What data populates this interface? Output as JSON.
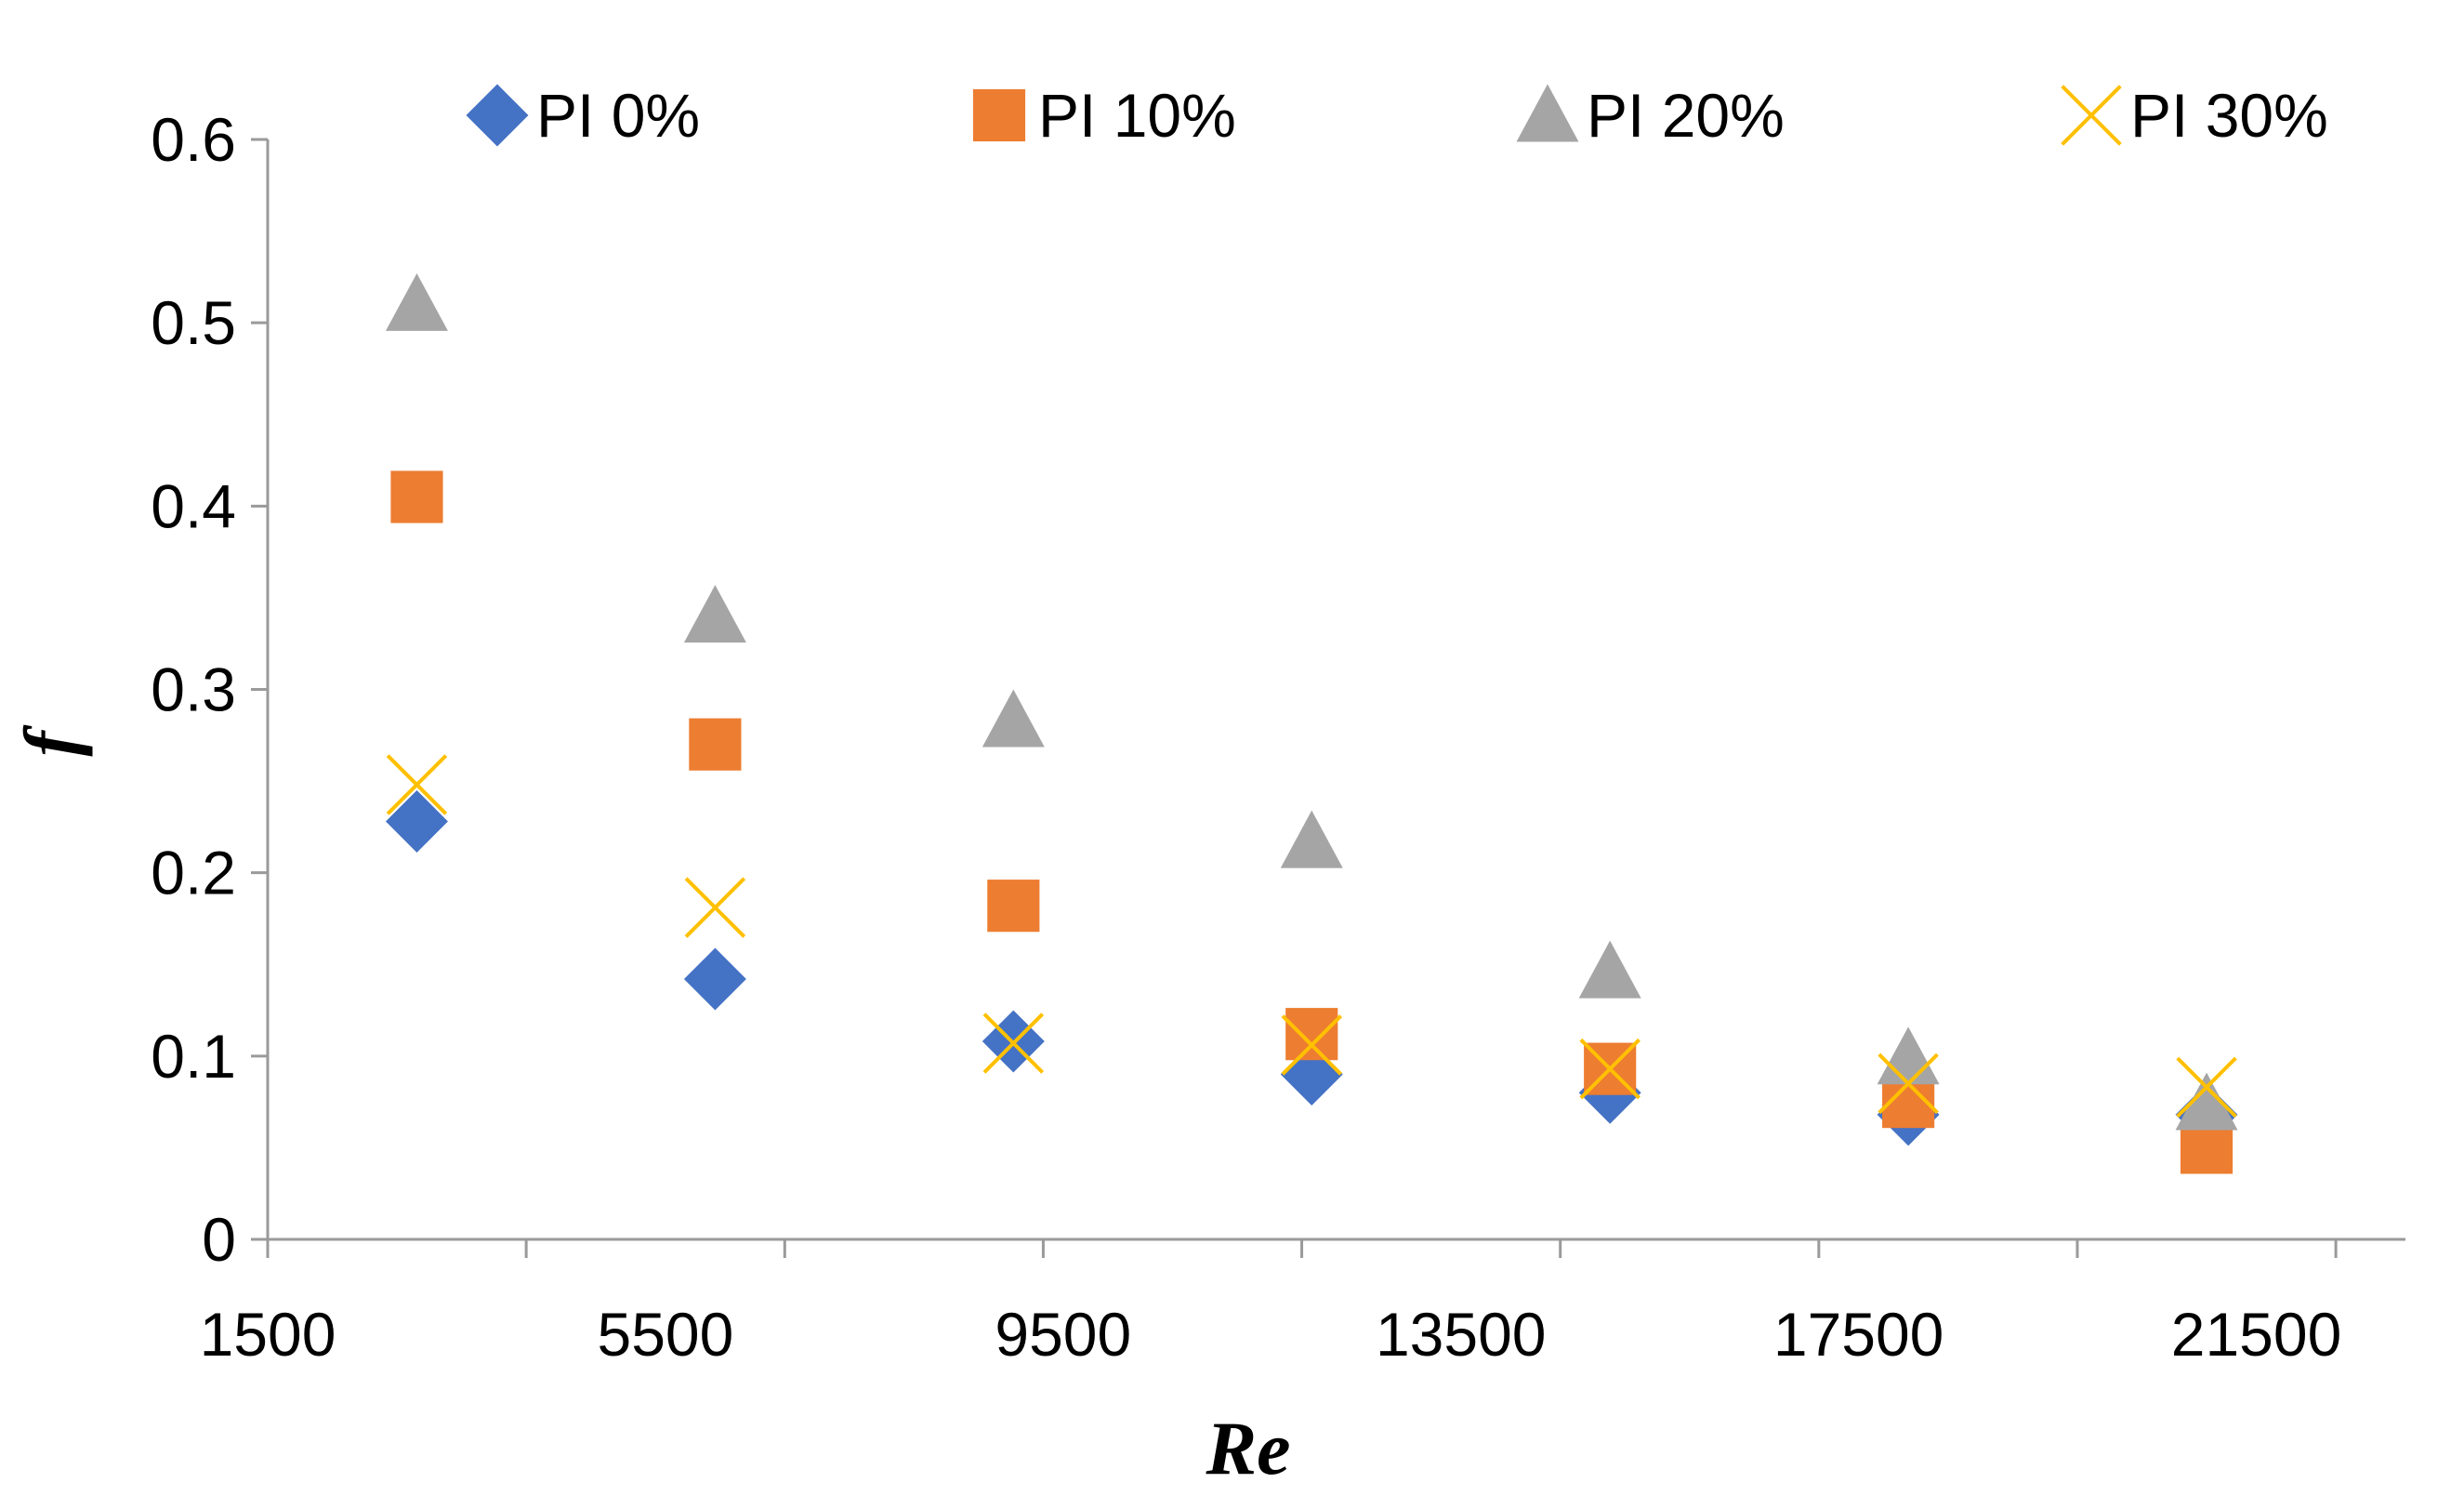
{
  "chart_data": {
    "type": "scatter",
    "title": "",
    "xlabel": "Re",
    "ylabel": "f",
    "xlim": [
      1500,
      23000
    ],
    "ylim": [
      0,
      0.6
    ],
    "xticks": [
      1500,
      5500,
      9500,
      13500,
      17500,
      21500
    ],
    "xtick_labels": [
      "1500",
      "5500",
      "9500",
      "13500",
      "17500",
      "21500"
    ],
    "yticks": [
      0,
      0.1,
      0.2,
      0.3,
      0.4,
      0.5,
      0.6
    ],
    "ytick_labels": [
      "0",
      "0.1",
      "0.2",
      "0.3",
      "0.4",
      "0.5",
      "0.6"
    ],
    "grid": false,
    "legend_position": "top",
    "x": [
      3000,
      6000,
      9000,
      12000,
      15000,
      18000,
      21000
    ],
    "series": [
      {
        "name": "PI 0%",
        "marker": "diamond",
        "color": "#4472C4",
        "values": [
          0.228,
          0.142,
          0.108,
          0.09,
          0.08,
          0.068,
          0.068
        ]
      },
      {
        "name": "PI 10%",
        "marker": "square",
        "color": "#ED7D31",
        "values": [
          0.405,
          0.27,
          0.182,
          0.112,
          0.093,
          0.075,
          0.05
        ]
      },
      {
        "name": "PI 20%",
        "marker": "triangle",
        "color": "#A5A5A5",
        "values": [
          0.51,
          0.34,
          0.283,
          0.217,
          0.146,
          0.099,
          0.074
        ]
      },
      {
        "name": "PI 30%",
        "marker": "x",
        "color": "#FFC000",
        "values": [
          0.248,
          0.181,
          0.107,
          0.106,
          0.093,
          0.085,
          0.083
        ]
      }
    ]
  }
}
